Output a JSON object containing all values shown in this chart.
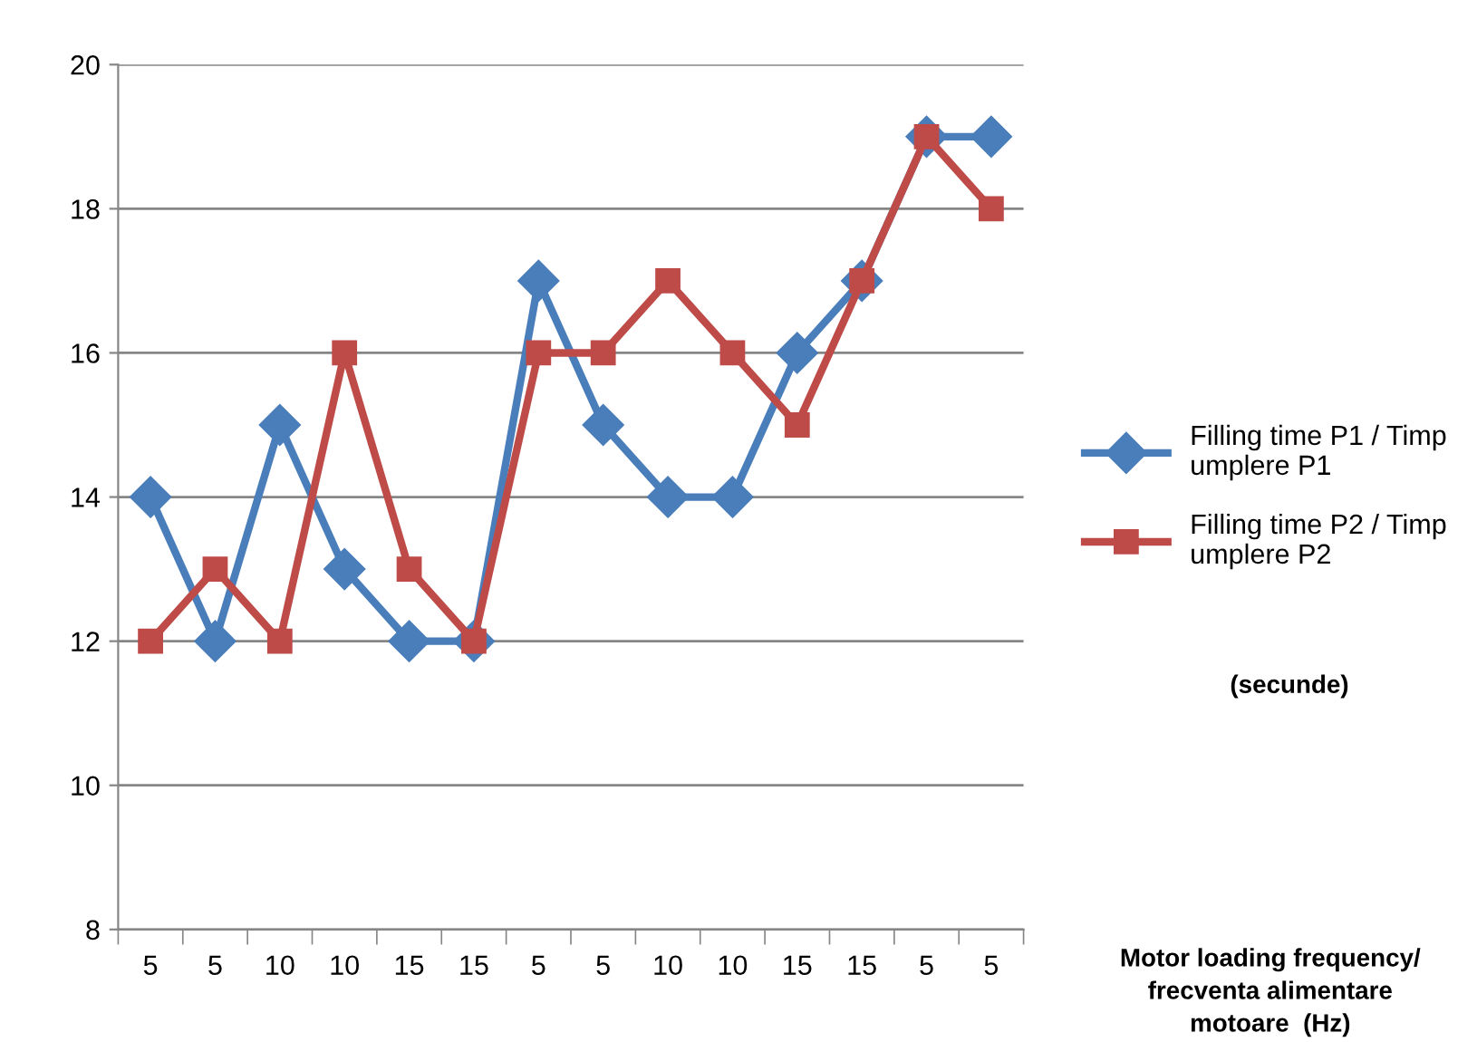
{
  "chart_data": {
    "type": "line",
    "xlabel": "Motor loading frequency/ frecventa alimentare motoare  (Hz)",
    "categories": [
      "5",
      "5",
      "10",
      "10",
      "15",
      "15",
      "5",
      "5",
      "10",
      "10",
      "15",
      "15",
      "5",
      "5"
    ],
    "series": [
      {
        "name": "Filling time P1 / Timp umplere P1",
        "color": "#4a7ebb",
        "marker": "diamond",
        "values": [
          14,
          12,
          15,
          13,
          12,
          12,
          17,
          15,
          14,
          14,
          16,
          17,
          19,
          19
        ]
      },
      {
        "name": "Filling time P2 / Timp umplere P2",
        "color": "#be4b48",
        "marker": "square",
        "values": [
          12,
          13,
          12,
          16,
          13,
          12,
          16,
          16,
          17,
          16,
          15,
          17,
          19,
          18
        ]
      }
    ],
    "ylim": [
      8,
      20
    ],
    "yticks": [
      8,
      10,
      12,
      14,
      16,
      18,
      20
    ],
    "grid": "y",
    "legend": "right",
    "line_style": "solid",
    "annotations": [
      "(secunde)"
    ]
  }
}
